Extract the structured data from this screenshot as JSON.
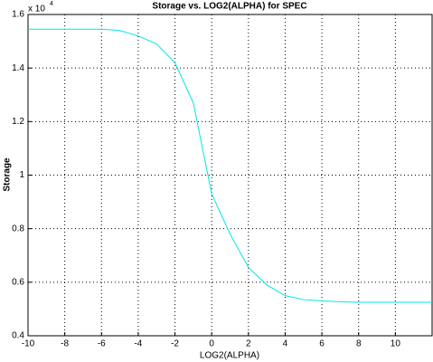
{
  "chart_data": {
    "type": "line",
    "title": "Storage vs. LOG2(ALPHA) for SPEC",
    "x_label": "LOG2(ALPHA)",
    "y_label": "Storage",
    "y_multiplier": {
      "base": "x 10",
      "exponent": "4"
    },
    "x": [
      -10,
      -9,
      -8,
      -7,
      -6,
      -5,
      -4,
      -3,
      -2,
      -1,
      0,
      1,
      2,
      3,
      4,
      5,
      6,
      7,
      8,
      9,
      10,
      11,
      12
    ],
    "series": [
      {
        "color": "#00e5e5",
        "values": [
          1.545,
          1.545,
          1.545,
          1.545,
          1.545,
          1.54,
          1.52,
          1.49,
          1.42,
          1.27,
          0.93,
          0.78,
          0.655,
          0.59,
          0.55,
          0.535,
          0.53,
          0.527,
          0.525,
          0.525,
          0.525,
          0.525,
          0.525
        ]
      }
    ],
    "xlim": [
      -10,
      12
    ],
    "ylim": [
      0.4,
      1.6
    ],
    "xticks": [
      -10,
      -8,
      -6,
      -4,
      -2,
      0,
      2,
      4,
      6,
      8,
      10
    ],
    "yticks": [
      0.4,
      0.6,
      0.8,
      1,
      1.2,
      1.4,
      1.6
    ],
    "grid": true
  }
}
